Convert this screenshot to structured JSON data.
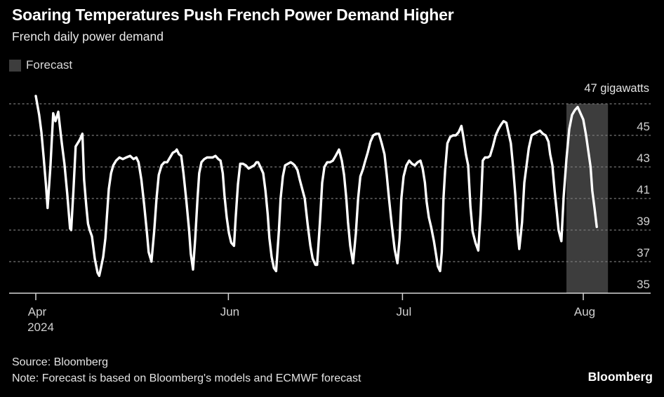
{
  "header": {
    "title": "Soaring Temperatures Push French Power Demand Higher",
    "subtitle": "French daily power demand"
  },
  "legend": {
    "items": [
      {
        "label": "Forecast",
        "swatch_color": "#3d3d3d"
      }
    ]
  },
  "footer": {
    "source": "Source: Bloomberg",
    "note": "Note: Forecast is based on Bloomberg's models and ECMWF forecast",
    "logo": "Bloomberg"
  },
  "colors": {
    "background": "#000000",
    "line": "#ffffff",
    "forecast_band": "#3d3d3d",
    "gridline": "#7a7a7a",
    "axis": "#d6d6d6",
    "tick_label": "#d0d0d0",
    "title": "#ffffff",
    "subtitle": "#ececec",
    "footer_text": "#e3e3e3"
  },
  "chart_data": {
    "type": "line",
    "title": "Soaring Temperatures Push French Power Demand Higher",
    "subtitle": "French daily power demand",
    "xlabel": "",
    "ylabel": "gigawatts",
    "unit_top_label": "47 gigawatts",
    "grid": "dashed-horizontal",
    "legend_position": "top-left",
    "y_axis": {
      "min": 35,
      "max": 47.8,
      "gridline_values": [
        47,
        45,
        43,
        41,
        39,
        37
      ],
      "baseline_value": 35,
      "tick_labels": [
        {
          "v": 45,
          "label": "45"
        },
        {
          "v": 43,
          "label": "43"
        },
        {
          "v": 41,
          "label": "41"
        },
        {
          "v": 39,
          "label": "39"
        },
        {
          "v": 37,
          "label": "37"
        },
        {
          "v": 35,
          "label": "35"
        }
      ]
    },
    "x_axis": {
      "unit": "days from start (Apr 2024)",
      "domain": [
        0,
        101.9
      ],
      "ticks": [
        {
          "label": "Apr",
          "sub_label": "2024",
          "d": 0
        },
        {
          "label": "Jun",
          "d": 34.3
        },
        {
          "label": "Jul",
          "d": 65.3
        },
        {
          "label": "Aug",
          "d": 97.5
        }
      ]
    },
    "forecast_band": {
      "from_d": 94.5,
      "to_d": 101.9,
      "label": "Forecast"
    },
    "series": [
      {
        "name": "French daily power demand (GW)",
        "color": "#ffffff",
        "points": [
          [
            0,
            47.5
          ],
          [
            0.3,
            46.9
          ],
          [
            0.6,
            46.3
          ],
          [
            1,
            45.2
          ],
          [
            1.4,
            43.6
          ],
          [
            1.8,
            41.9
          ],
          [
            2.1,
            40.4
          ],
          [
            2.6,
            43.0
          ],
          [
            3.1,
            46.4
          ],
          [
            3.5,
            45.9
          ],
          [
            4,
            46.5
          ],
          [
            4.6,
            44.6
          ],
          [
            5.1,
            43.2
          ],
          [
            5.6,
            41.3
          ],
          [
            6.1,
            39.1
          ],
          [
            6.3,
            39.0
          ],
          [
            6.7,
            41.5
          ],
          [
            7.1,
            44.3
          ],
          [
            7.8,
            44.7
          ],
          [
            8.3,
            45.1
          ],
          [
            8.6,
            42.2
          ],
          [
            9,
            40.5
          ],
          [
            9.3,
            39.4
          ],
          [
            9.6,
            39.0
          ],
          [
            10,
            38.6
          ],
          [
            10.5,
            37.2
          ],
          [
            11,
            36.3
          ],
          [
            11.3,
            36.1
          ],
          [
            11.6,
            36.6
          ],
          [
            12,
            37.3
          ],
          [
            12.4,
            38.5
          ],
          [
            13,
            41.6
          ],
          [
            13.4,
            42.6
          ],
          [
            13.8,
            43.1
          ],
          [
            14.3,
            43.4
          ],
          [
            14.9,
            43.6
          ],
          [
            15.5,
            43.5
          ],
          [
            16.1,
            43.6
          ],
          [
            16.8,
            43.7
          ],
          [
            17.4,
            43.5
          ],
          [
            17.9,
            43.6
          ],
          [
            18.3,
            43.3
          ],
          [
            18.8,
            42.2
          ],
          [
            19.3,
            40.6
          ],
          [
            19.8,
            38.8
          ],
          [
            20.1,
            37.6
          ],
          [
            20.6,
            37.0
          ],
          [
            21.1,
            39.0
          ],
          [
            21.5,
            41.0
          ],
          [
            21.9,
            42.5
          ],
          [
            22.4,
            43.1
          ],
          [
            22.9,
            43.3
          ],
          [
            23.4,
            43.3
          ],
          [
            23.9,
            43.6
          ],
          [
            24.4,
            43.9
          ],
          [
            24.9,
            44.0
          ],
          [
            25.1,
            44.1
          ],
          [
            25.5,
            43.8
          ],
          [
            25.9,
            43.7
          ],
          [
            26.3,
            42.6
          ],
          [
            26.8,
            40.9
          ],
          [
            27.3,
            39.0
          ],
          [
            27.6,
            37.5
          ],
          [
            28,
            36.5
          ],
          [
            28.4,
            38.5
          ],
          [
            28.8,
            41.0
          ],
          [
            29.1,
            42.6
          ],
          [
            29.5,
            43.3
          ],
          [
            30,
            43.5
          ],
          [
            30.5,
            43.6
          ],
          [
            31,
            43.6
          ],
          [
            31.5,
            43.6
          ],
          [
            32,
            43.7
          ],
          [
            32.5,
            43.5
          ],
          [
            32.9,
            43.4
          ],
          [
            33.3,
            42.6
          ],
          [
            33.6,
            41.2
          ],
          [
            34,
            39.8
          ],
          [
            34.4,
            38.8
          ],
          [
            34.8,
            38.2
          ],
          [
            35.3,
            38.0
          ],
          [
            35.6,
            39.8
          ],
          [
            36,
            41.9
          ],
          [
            36.4,
            43.2
          ],
          [
            36.9,
            43.2
          ],
          [
            37.4,
            43.1
          ],
          [
            37.9,
            42.9
          ],
          [
            38.4,
            43.0
          ],
          [
            38.9,
            43.1
          ],
          [
            39.3,
            43.3
          ],
          [
            39.6,
            43.3
          ],
          [
            40,
            43.0
          ],
          [
            40.5,
            42.6
          ],
          [
            40.9,
            41.5
          ],
          [
            41.3,
            40.0
          ],
          [
            41.6,
            38.5
          ],
          [
            42,
            37.3
          ],
          [
            42.4,
            36.6
          ],
          [
            42.8,
            36.4
          ],
          [
            43.3,
            39.0
          ],
          [
            43.6,
            41.0
          ],
          [
            44,
            42.4
          ],
          [
            44.4,
            43.1
          ],
          [
            44.9,
            43.2
          ],
          [
            45.4,
            43.3
          ],
          [
            45.8,
            43.2
          ],
          [
            46.1,
            43.1
          ],
          [
            46.6,
            42.8
          ],
          [
            47,
            42.2
          ],
          [
            47.9,
            41.0
          ],
          [
            48.4,
            39.4
          ],
          [
            48.9,
            38.0
          ],
          [
            49.3,
            37.2
          ],
          [
            49.8,
            36.8
          ],
          [
            50.1,
            36.8
          ],
          [
            50.6,
            39.5
          ],
          [
            51,
            42.0
          ],
          [
            51.4,
            43.0
          ],
          [
            51.9,
            43.3
          ],
          [
            52.4,
            43.3
          ],
          [
            52.9,
            43.4
          ],
          [
            53.4,
            43.7
          ],
          [
            54,
            44.1
          ],
          [
            54.5,
            43.4
          ],
          [
            54.9,
            42.5
          ],
          [
            55.3,
            41.0
          ],
          [
            55.6,
            39.5
          ],
          [
            56,
            38.0
          ],
          [
            56.5,
            36.9
          ],
          [
            57,
            38.8
          ],
          [
            57.4,
            41.0
          ],
          [
            57.8,
            42.4
          ],
          [
            58.3,
            42.9
          ],
          [
            58.6,
            43.3
          ],
          [
            59.1,
            43.9
          ],
          [
            59.6,
            44.6
          ],
          [
            60.1,
            45.0
          ],
          [
            60.6,
            45.1
          ],
          [
            61.1,
            45.1
          ],
          [
            61.6,
            44.5
          ],
          [
            62.1,
            43.8
          ],
          [
            62.5,
            42.5
          ],
          [
            62.9,
            41.0
          ],
          [
            63.4,
            39.3
          ],
          [
            63.9,
            37.8
          ],
          [
            64.4,
            36.9
          ],
          [
            64.8,
            38.5
          ],
          [
            65.1,
            41.0
          ],
          [
            65.5,
            42.4
          ],
          [
            66,
            43.1
          ],
          [
            66.5,
            43.4
          ],
          [
            67,
            43.2
          ],
          [
            67.5,
            43.1
          ],
          [
            68,
            43.3
          ],
          [
            68.5,
            43.4
          ],
          [
            68.9,
            42.9
          ],
          [
            69.3,
            42.0
          ],
          [
            69.6,
            40.8
          ],
          [
            70,
            39.8
          ],
          [
            70.4,
            39.2
          ],
          [
            70.9,
            38.3
          ],
          [
            71.3,
            37.4
          ],
          [
            71.6,
            36.7
          ],
          [
            72,
            36.4
          ],
          [
            72.3,
            37.6
          ],
          [
            72.6,
            41.0
          ],
          [
            72.9,
            42.8
          ],
          [
            73.3,
            44.5
          ],
          [
            73.8,
            44.9
          ],
          [
            74.3,
            45.0
          ],
          [
            74.8,
            45.0
          ],
          [
            75.3,
            45.2
          ],
          [
            75.8,
            45.6
          ],
          [
            76.1,
            45.0
          ],
          [
            76.6,
            43.8
          ],
          [
            77,
            43.1
          ],
          [
            77.4,
            40.5
          ],
          [
            77.8,
            38.9
          ],
          [
            78.3,
            38.2
          ],
          [
            78.8,
            37.7
          ],
          [
            79.2,
            40.0
          ],
          [
            79.6,
            43.4
          ],
          [
            80,
            43.6
          ],
          [
            80.5,
            43.6
          ],
          [
            80.9,
            43.7
          ],
          [
            81.4,
            44.3
          ],
          [
            81.9,
            45.0
          ],
          [
            82.4,
            45.4
          ],
          [
            82.9,
            45.7
          ],
          [
            83.3,
            45.9
          ],
          [
            83.8,
            45.8
          ],
          [
            84.1,
            45.3
          ],
          [
            84.6,
            44.5
          ],
          [
            85,
            43.0
          ],
          [
            85.4,
            41.2
          ],
          [
            85.8,
            38.9
          ],
          [
            86.1,
            37.8
          ],
          [
            86.6,
            39.5
          ],
          [
            87,
            42.0
          ],
          [
            87.4,
            43.1
          ],
          [
            87.8,
            44.2
          ],
          [
            88.3,
            45.0
          ],
          [
            88.8,
            45.1
          ],
          [
            89.3,
            45.2
          ],
          [
            89.8,
            45.3
          ],
          [
            90.3,
            45.1
          ],
          [
            90.8,
            45.0
          ],
          [
            91.3,
            44.6
          ],
          [
            91.6,
            43.8
          ],
          [
            92,
            43.1
          ],
          [
            92.4,
            41.5
          ],
          [
            92.8,
            40.1
          ],
          [
            93.1,
            39.0
          ],
          [
            93.6,
            38.3
          ],
          [
            94,
            41.1
          ],
          [
            94.5,
            43.5
          ],
          [
            95,
            45.4
          ],
          [
            95.5,
            46.3
          ],
          [
            96,
            46.6
          ],
          [
            96.5,
            46.8
          ],
          [
            97,
            46.4
          ],
          [
            97.5,
            46.0
          ],
          [
            98,
            45.0
          ],
          [
            98.4,
            44.0
          ],
          [
            98.8,
            43.0
          ],
          [
            99.1,
            41.5
          ],
          [
            99.5,
            40.4
          ],
          [
            99.9,
            39.2
          ]
        ]
      }
    ]
  }
}
